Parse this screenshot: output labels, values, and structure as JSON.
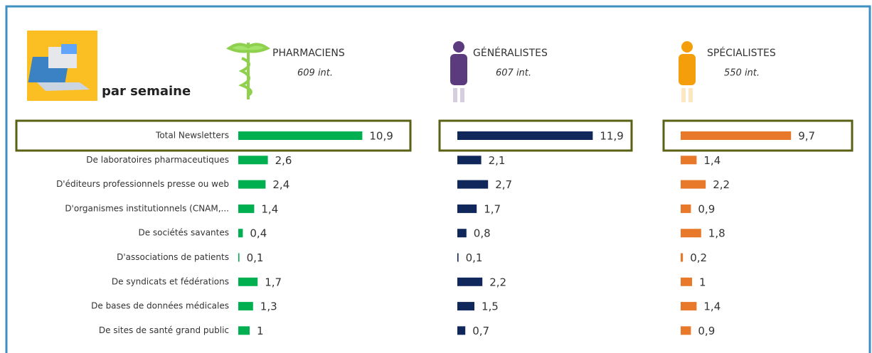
{
  "header": {
    "title": "par semaine"
  },
  "chart_data": {
    "type": "bar",
    "orientation": "horizontal",
    "categories": [
      "Total Newsletters",
      "De laboratoires pharmaceutiques",
      "D'éditeurs professionnels presse ou web",
      "D'organismes institutionnels (CNAM,...",
      "De sociétés savantes",
      "D'associations de patients",
      "De syndicats et fédérations",
      "De bases de données médicales",
      "De sites de santé grand public"
    ],
    "series": [
      {
        "name": "PHARMACIENS",
        "note": "609 int.",
        "color": "#00b050",
        "values": [
          10.9,
          2.6,
          2.4,
          1.4,
          0.4,
          0.1,
          1.7,
          1.3,
          1
        ],
        "value_labels": [
          "10,9",
          "2,6",
          "2,4",
          "1,4",
          "0,4",
          "0,1",
          "1,7",
          "1,3",
          "1"
        ]
      },
      {
        "name": "GÉNÉRALISTES",
        "note": "607 int.",
        "color": "#10275c",
        "values": [
          11.9,
          2.1,
          2.7,
          1.7,
          0.8,
          0.1,
          2.2,
          1.5,
          0.7
        ],
        "value_labels": [
          "11,9",
          "2,1",
          "2,7",
          "1,7",
          "0,8",
          "0,1",
          "2,2",
          "1,5",
          "0,7"
        ]
      },
      {
        "name": "SPÉCIALISTES",
        "note": "550 int.",
        "color": "#e8792a",
        "values": [
          9.7,
          1.4,
          2.2,
          0.9,
          1.8,
          0.2,
          1,
          1.4,
          0.9
        ],
        "value_labels": [
          "9,7",
          "1,4",
          "2,2",
          "0,9",
          "1,8",
          "0,2",
          "1",
          "1,4",
          "0,9"
        ]
      }
    ]
  }
}
